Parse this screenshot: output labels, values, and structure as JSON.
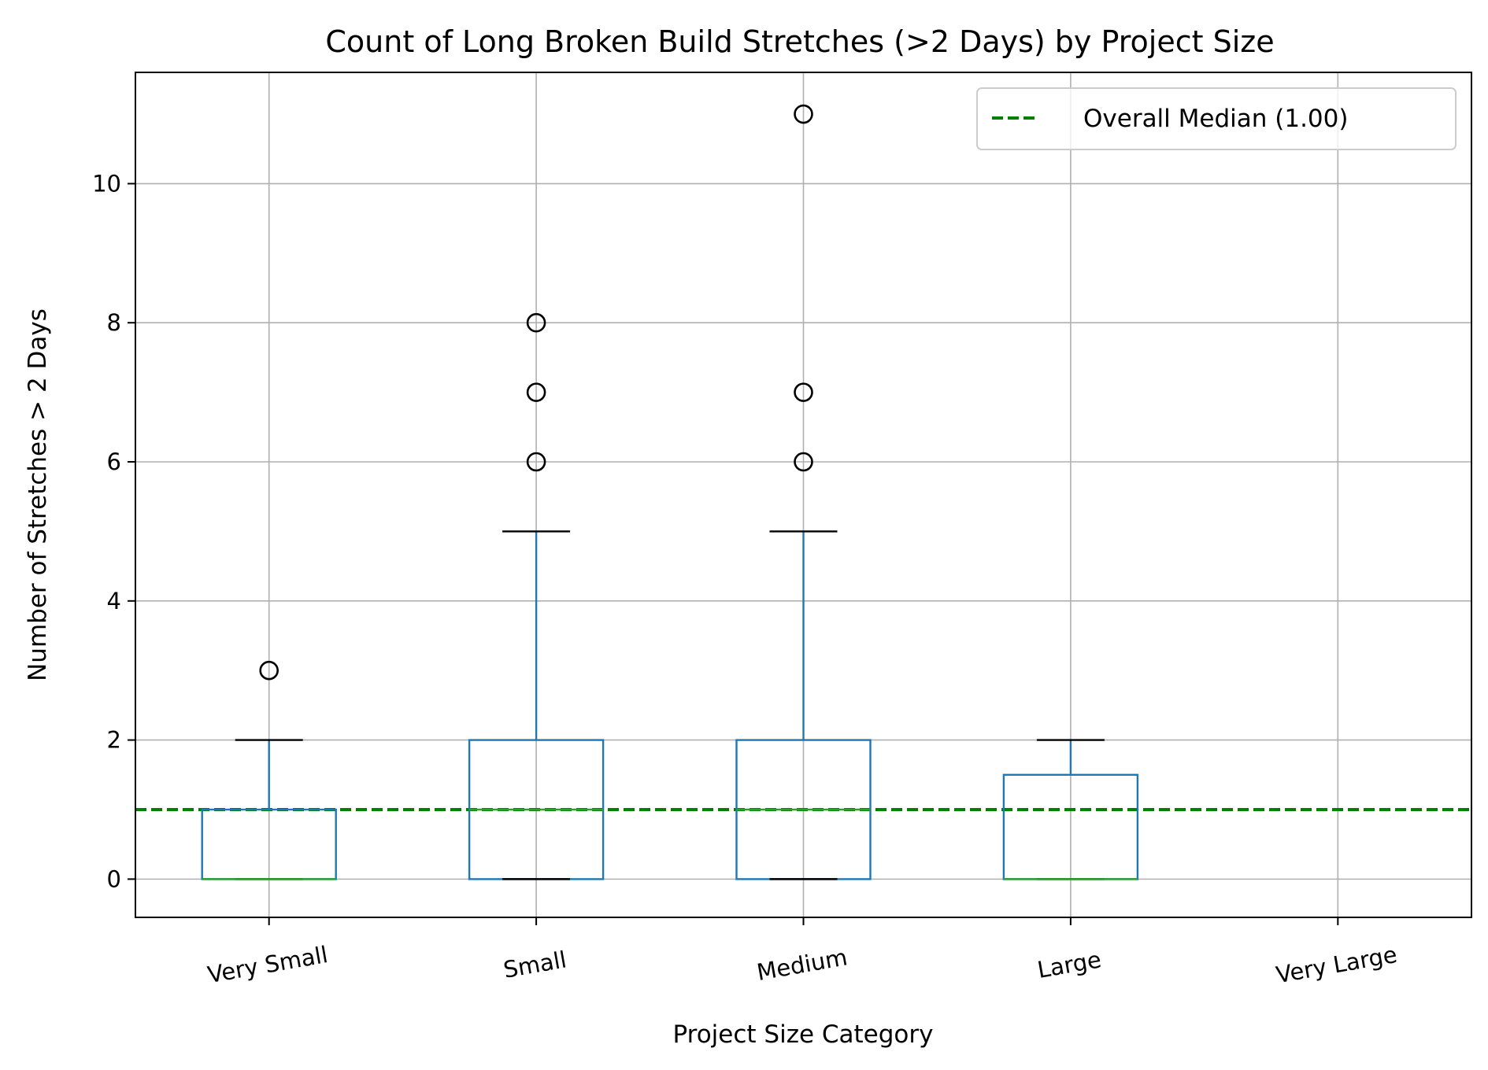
{
  "chart_data": {
    "type": "box",
    "title": "Count of Long Broken Build Stretches (>2 Days) by Project Size",
    "xlabel": "Project Size Category",
    "ylabel": "Number of Stretches > 2 Days",
    "categories": [
      "Very Small",
      "Small",
      "Medium",
      "Large",
      "Very Large"
    ],
    "ylim": [
      -0.55,
      11.6
    ],
    "yticks": [
      0,
      2,
      4,
      6,
      8,
      10
    ],
    "grid": true,
    "boxes": [
      {
        "category": "Very Small",
        "q1": 0,
        "median": 0,
        "q3": 1,
        "whisker_low": 0,
        "whisker_high": 2,
        "outliers": [
          3
        ]
      },
      {
        "category": "Small",
        "q1": 0,
        "median": 1,
        "q3": 2,
        "whisker_low": 0,
        "whisker_high": 5,
        "outliers": [
          6,
          7,
          8
        ]
      },
      {
        "category": "Medium",
        "q1": 0,
        "median": 1,
        "q3": 2,
        "whisker_low": 0,
        "whisker_high": 5,
        "outliers": [
          6,
          7,
          11
        ]
      },
      {
        "category": "Large",
        "q1": 0,
        "median": 0,
        "q3": 1.5,
        "whisker_low": 0,
        "whisker_high": 2,
        "outliers": []
      },
      {
        "category": "Very Large",
        "q1": null,
        "median": null,
        "q3": null,
        "whisker_low": null,
        "whisker_high": null,
        "outliers": []
      }
    ],
    "reference_line": {
      "value": 1.0,
      "label": "Overall Median (1.00)",
      "color": "#008000",
      "style": "dashed"
    },
    "legend": {
      "position": "top-right",
      "entries": [
        "Overall Median (1.00)"
      ]
    },
    "colors": {
      "box": "#1f77b4",
      "median": "#2ca02c",
      "whisker_cap": "#000000",
      "grid": "#b0b0b0"
    }
  }
}
